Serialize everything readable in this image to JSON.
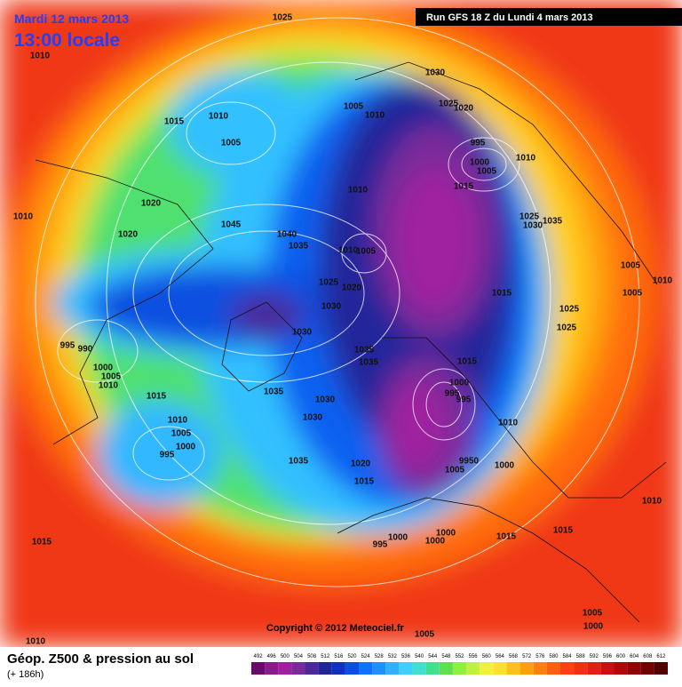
{
  "header": {
    "date": "Mardi 12 mars 2013",
    "time": "13:00 locale",
    "run": "Run GFS 18 Z du Lundi 4 mars 2013"
  },
  "footer": {
    "title": "Géop. Z500 & pression au sol",
    "lead": "(+ 186h)",
    "copyright": "Copyright © 2012 Meteociel.fr"
  },
  "legend": {
    "values": [
      492,
      496,
      500,
      504,
      508,
      512,
      516,
      520,
      524,
      528,
      532,
      536,
      540,
      544,
      548,
      552,
      556,
      560,
      564,
      568,
      572,
      576,
      580,
      584,
      588,
      592,
      596,
      600,
      604,
      608,
      612
    ],
    "colors": [
      "#6a0a6a",
      "#8a1a8a",
      "#a020a0",
      "#7a2a9a",
      "#4a2a9a",
      "#22259a",
      "#1030c0",
      "#0a50e0",
      "#1070ff",
      "#2090ff",
      "#30b0ff",
      "#40d0ff",
      "#40e0d0",
      "#40e090",
      "#60e050",
      "#90f040",
      "#c0f040",
      "#f0f040",
      "#ffe030",
      "#ffc020",
      "#ffa010",
      "#ff8010",
      "#ff6010",
      "#ff4010",
      "#f03010",
      "#e02010",
      "#c81010",
      "#b00808",
      "#900404",
      "#700202",
      "#500000"
    ]
  },
  "pressure_labels": [
    "1025",
    "1010",
    "1030",
    "1005",
    "1010",
    "1025",
    "1020",
    "1015",
    "1010",
    "1005",
    "995",
    "1000",
    "1005",
    "1010",
    "1015",
    "1020",
    "1010",
    "1025",
    "1030",
    "1035",
    "1010",
    "1020",
    "1045",
    "1040",
    "1035",
    "1010",
    "1005",
    "1025",
    "1020",
    "1030",
    "1015",
    "1005",
    "1010",
    "1005",
    "1025",
    "1025",
    "995",
    "990",
    "1030",
    "1035",
    "1035",
    "1015",
    "1000",
    "1005",
    "1010",
    "1000",
    "995",
    "995",
    "1015",
    "1035",
    "1030",
    "1030",
    "1010",
    "1005",
    "1010",
    "1000",
    "995",
    "1035",
    "1020",
    "9950",
    "1005",
    "1000",
    "1015",
    "1010",
    "1015",
    "995",
    "1000",
    "1000",
    "1000",
    "1015",
    "1015",
    "1005",
    "1000",
    "1005",
    "1010"
  ]
}
